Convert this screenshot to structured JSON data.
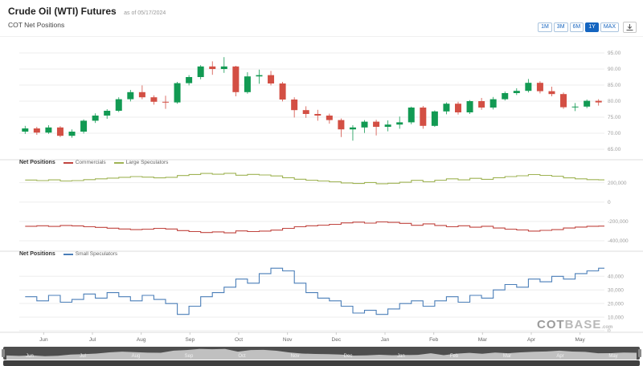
{
  "header": {
    "title": "Crude Oil (WTI) Futures",
    "as_of": "as of 05/17/2024",
    "subtitle": "COT Net Positions"
  },
  "ranges": [
    "1M",
    "3M",
    "6M",
    "1Y",
    "MAX"
  ],
  "active_range": "1Y",
  "months": [
    "Jun",
    "Jul",
    "Aug",
    "Sep",
    "Oct",
    "Nov",
    "Dec",
    "Jan",
    "Feb",
    "Mar",
    "Apr",
    "May"
  ],
  "watermark": {
    "part1": "COT",
    "part2": "BASE",
    "suffix": ".com"
  },
  "colors": {
    "candle_up": "#129a53",
    "candle_down": "#d34f44",
    "grid": "#ededed",
    "axis_text": "#9e9e9e",
    "separator": "#dcdcdc",
    "accent": "#1565c0",
    "navigator_bg": "#4e4e4e",
    "navigator_area": "#cdcdcd"
  },
  "chart_data": [
    {
      "type": "candlestick",
      "name": "Crude Oil (WTI) Futures price",
      "x_unit": "weekly, Jun 2023 - May 2024",
      "ylim": [
        62.5,
        96.5
      ],
      "ytick_values": [
        95,
        90,
        85,
        80,
        75,
        70,
        65
      ],
      "ytick_labels": [
        "95.00",
        "90.00",
        "85.00",
        "80.00",
        "75.00",
        "70.00",
        "65.00"
      ],
      "candles": [
        [
          70.5,
          72.3,
          69.8,
          71.5
        ],
        [
          71.5,
          72.0,
          69.5,
          70.2
        ],
        [
          70.2,
          72.5,
          69.8,
          71.8
        ],
        [
          71.8,
          72.2,
          68.8,
          69.2
        ],
        [
          69.2,
          71.2,
          68.6,
          70.5
        ],
        [
          70.5,
          74.3,
          69.9,
          73.9
        ],
        [
          73.9,
          76.2,
          73.2,
          75.5
        ],
        [
          75.5,
          77.5,
          74.5,
          77.0
        ],
        [
          77.0,
          81.2,
          76.6,
          80.6
        ],
        [
          80.6,
          83.5,
          79.9,
          82.8
        ],
        [
          82.8,
          84.9,
          80.6,
          81.2
        ],
        [
          81.2,
          81.8,
          78.9,
          79.8
        ],
        [
          79.8,
          81.7,
          77.6,
          79.6
        ],
        [
          79.6,
          86.0,
          79.2,
          85.6
        ],
        [
          85.6,
          88.1,
          84.9,
          87.5
        ],
        [
          87.5,
          91.2,
          86.8,
          90.8
        ],
        [
          90.8,
          92.4,
          88.2,
          90.0
        ],
        [
          90.0,
          93.7,
          88.8,
          90.8
        ],
        [
          90.8,
          91.0,
          81.5,
          82.8
        ],
        [
          82.8,
          89.0,
          82.3,
          87.7
        ],
        [
          87.7,
          89.8,
          85.4,
          88.1
        ],
        [
          88.1,
          89.4,
          84.9,
          85.5
        ],
        [
          85.5,
          86.0,
          79.9,
          80.5
        ],
        [
          80.5,
          81.2,
          74.9,
          77.2
        ],
        [
          77.2,
          78.4,
          74.8,
          76.0
        ],
        [
          76.0,
          77.3,
          73.9,
          75.5
        ],
        [
          75.5,
          76.1,
          73.0,
          74.1
        ],
        [
          74.1,
          74.6,
          68.8,
          71.2
        ],
        [
          71.2,
          72.5,
          67.7,
          71.8
        ],
        [
          71.8,
          74.1,
          70.1,
          73.6
        ],
        [
          73.6,
          74.2,
          69.3,
          72.0
        ],
        [
          72.0,
          74.0,
          70.6,
          72.7
        ],
        [
          72.7,
          75.2,
          71.4,
          73.4
        ],
        [
          73.4,
          78.3,
          72.8,
          78.0
        ],
        [
          78.0,
          78.5,
          71.4,
          72.3
        ],
        [
          72.3,
          77.1,
          72.0,
          76.8
        ],
        [
          76.8,
          79.6,
          75.9,
          79.2
        ],
        [
          79.2,
          79.8,
          75.8,
          76.5
        ],
        [
          76.5,
          80.3,
          76.0,
          80.0
        ],
        [
          80.0,
          81.0,
          77.3,
          78.0
        ],
        [
          78.0,
          81.3,
          77.4,
          80.6
        ],
        [
          80.6,
          83.0,
          80.2,
          82.5
        ],
        [
          82.5,
          84.0,
          81.9,
          83.2
        ],
        [
          83.2,
          86.9,
          82.7,
          85.7
        ],
        [
          85.7,
          86.2,
          82.4,
          83.1
        ],
        [
          83.1,
          84.5,
          81.5,
          82.2
        ],
        [
          82.2,
          82.7,
          77.6,
          78.1
        ],
        [
          78.1,
          79.4,
          76.9,
          78.3
        ],
        [
          78.3,
          80.5,
          77.8,
          80.1
        ],
        [
          80.1,
          80.6,
          78.6,
          79.6
        ]
      ]
    },
    {
      "type": "line",
      "title": "Net Positions",
      "ylim": [
        -450000,
        330000
      ],
      "ytick_values": [
        200000,
        0,
        -200000,
        -400000
      ],
      "ytick_labels": [
        "200,000",
        "0",
        "-200,000",
        "-400,000"
      ],
      "series": [
        {
          "name": "Commercials",
          "color": "#c0443f",
          "values": [
            -250000,
            -245000,
            -252000,
            -242000,
            -246000,
            -255000,
            -262000,
            -270000,
            -278000,
            -285000,
            -280000,
            -272000,
            -278000,
            -295000,
            -305000,
            -315000,
            -308000,
            -318000,
            -298000,
            -305000,
            -300000,
            -290000,
            -272000,
            -255000,
            -245000,
            -238000,
            -230000,
            -215000,
            -208000,
            -218000,
            -205000,
            -210000,
            -220000,
            -240000,
            -225000,
            -242000,
            -255000,
            -245000,
            -260000,
            -250000,
            -268000,
            -280000,
            -288000,
            -300000,
            -292000,
            -285000,
            -268000,
            -258000,
            -250000,
            -248000
          ]
        },
        {
          "name": "Large Speculators",
          "color": "#9fb354",
          "values": [
            228000,
            222000,
            230000,
            218000,
            222000,
            232000,
            240000,
            248000,
            256000,
            264000,
            258000,
            250000,
            256000,
            274000,
            285000,
            296000,
            288000,
            298000,
            278000,
            286000,
            280000,
            270000,
            252000,
            236000,
            226000,
            218000,
            210000,
            198000,
            192000,
            202000,
            190000,
            195000,
            205000,
            225000,
            210000,
            226000,
            240000,
            230000,
            245000,
            235000,
            252000,
            264000,
            272000,
            284000,
            276000,
            268000,
            250000,
            240000,
            232000,
            230000
          ]
        }
      ]
    },
    {
      "type": "line",
      "title": "Net Positions",
      "ylim": [
        0,
        52000
      ],
      "ytick_values": [
        40000,
        30000,
        20000,
        10000,
        0
      ],
      "ytick_labels": [
        "40,000",
        "30,000",
        "20,000",
        "10,000",
        "0"
      ],
      "series": [
        {
          "name": "Small Speculators",
          "color": "#4a7eb8",
          "values": [
            25000,
            22000,
            26000,
            21000,
            23000,
            27000,
            24000,
            28000,
            25000,
            22000,
            26000,
            23000,
            20000,
            12000,
            18000,
            25000,
            28000,
            32000,
            38000,
            35000,
            42000,
            46000,
            44000,
            35000,
            28000,
            24000,
            22000,
            18000,
            13000,
            15000,
            12000,
            16000,
            20000,
            22000,
            18000,
            22000,
            25000,
            21000,
            26000,
            24000,
            30000,
            34000,
            32000,
            38000,
            36000,
            40000,
            38000,
            42000,
            44000,
            46000
          ]
        }
      ]
    }
  ]
}
